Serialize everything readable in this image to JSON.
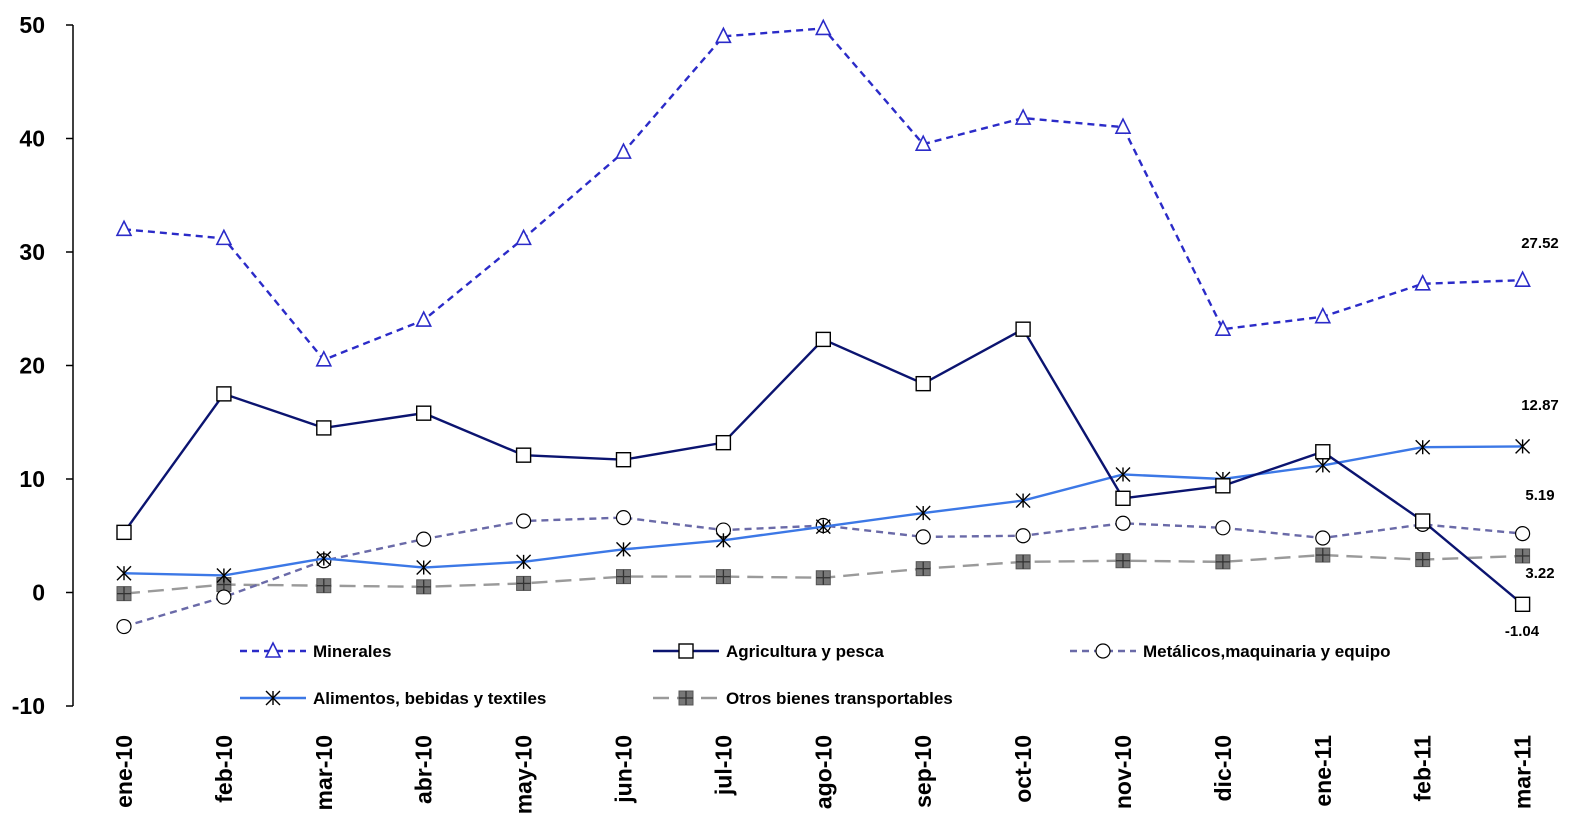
{
  "chart_data": {
    "type": "line",
    "title": "",
    "xlabel": "",
    "ylabel": "",
    "ylim": [
      -10,
      50
    ],
    "yticks": [
      -10,
      0,
      10,
      20,
      30,
      40,
      50
    ],
    "grid": false,
    "legend_position": "bottom-inside",
    "categories": [
      "ene-10",
      "feb-10",
      "mar-10",
      "abr-10",
      "may-10",
      "jun-10",
      "jul-10",
      "ago-10",
      "sep-10",
      "oct-10",
      "nov-10",
      "dic-10",
      "ene-11",
      "feb-11",
      "mar-11"
    ],
    "series": [
      {
        "name": "Minerales",
        "color": "#2B2BC8",
        "dash": "dashed",
        "marker": "triangle",
        "values": [
          32.0,
          31.2,
          20.5,
          24.0,
          31.2,
          38.8,
          49.0,
          49.7,
          39.5,
          41.8,
          41.0,
          23.2,
          24.3,
          27.2,
          27.52
        ],
        "end_label": "27.52"
      },
      {
        "name": "Agricultura y pesca",
        "color": "#0B1470",
        "dash": "solid",
        "marker": "square",
        "values": [
          5.3,
          17.5,
          14.5,
          15.8,
          12.1,
          11.7,
          13.2,
          22.3,
          18.4,
          23.2,
          8.3,
          9.4,
          12.4,
          6.3,
          -1.04
        ],
        "end_label": "-1.04"
      },
      {
        "name": "Metálicos,maquinaria y equipo",
        "color": "#6A6AA8",
        "dash": "dashed",
        "marker": "circle",
        "values": [
          -3.0,
          -0.4,
          2.8,
          4.7,
          6.3,
          6.6,
          5.5,
          5.9,
          4.9,
          5.0,
          6.1,
          5.7,
          4.8,
          6.0,
          5.19
        ],
        "end_label": "5.19"
      },
      {
        "name": "Alimentos, bebidas y textiles",
        "color": "#3C78E6",
        "dash": "solid",
        "marker": "asterisk",
        "values": [
          1.7,
          1.5,
          3.0,
          2.2,
          2.7,
          3.8,
          4.6,
          5.8,
          7.0,
          8.1,
          10.4,
          10.0,
          11.2,
          12.8,
          12.87
        ],
        "end_label": "12.87"
      },
      {
        "name": "Otros bienes transportables",
        "color": "#9A9A9A",
        "dash": "longdash",
        "marker": "filled-square",
        "values": [
          -0.1,
          0.7,
          0.6,
          0.5,
          0.8,
          1.4,
          1.4,
          1.3,
          2.1,
          2.7,
          2.8,
          2.7,
          3.3,
          2.9,
          3.22
        ],
        "end_label": "3.22"
      }
    ]
  }
}
